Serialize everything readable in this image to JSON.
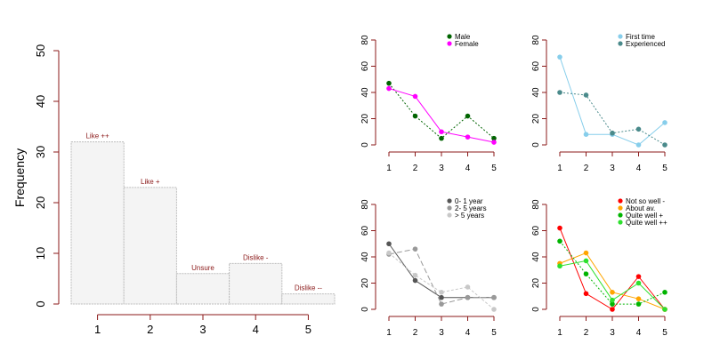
{
  "chart_data": [
    {
      "type": "bar",
      "ylabel": "Frequency",
      "categories": [
        "1",
        "2",
        "3",
        "4",
        "5"
      ],
      "values": [
        32,
        23,
        6,
        8,
        2
      ],
      "bar_labels": [
        "Like ++",
        "Like +",
        "Unsure",
        "Dislike -",
        "Dislike --"
      ],
      "ylim": [
        0,
        50
      ],
      "yticks": [
        0,
        10,
        20,
        30,
        40,
        50
      ],
      "grid": false,
      "colors": {
        "bar_fill": "#f4f4f4",
        "bar_stroke": "#bdbdbd",
        "label": "#8b1a1a",
        "axis": "#8b1a1a"
      }
    },
    {
      "type": "line",
      "x": [
        1,
        2,
        3,
        4,
        5
      ],
      "ylim": [
        0,
        80
      ],
      "yticks": [
        0,
        20,
        40,
        60,
        80
      ],
      "legend_position": "top-right",
      "series": [
        {
          "name": "Male",
          "values": [
            47,
            22,
            5,
            22,
            5
          ],
          "color": "#006400",
          "dash": "2,2"
        },
        {
          "name": "Female",
          "values": [
            43,
            37,
            10,
            6,
            2
          ],
          "color": "#ff00ff",
          "dash": ""
        }
      ]
    },
    {
      "type": "line",
      "x": [
        1,
        2,
        3,
        4,
        5
      ],
      "ylim": [
        0,
        80
      ],
      "yticks": [
        0,
        20,
        40,
        60,
        80
      ],
      "legend_position": "top-right",
      "series": [
        {
          "name": "First time",
          "values": [
            67,
            8,
            8,
            0,
            17
          ],
          "color": "#87ceeb",
          "dash": ""
        },
        {
          "name": "Experienced",
          "values": [
            40,
            38,
            9,
            12,
            0
          ],
          "color": "#4a8a8b",
          "dash": "2,2"
        }
      ]
    },
    {
      "type": "line",
      "x": [
        1,
        2,
        3,
        4,
        5
      ],
      "ylim": [
        0,
        80
      ],
      "yticks": [
        0,
        20,
        40,
        60,
        80
      ],
      "legend_position": "top-right",
      "series": [
        {
          "name": "0- 1 year",
          "values": [
            50,
            22,
            9,
            9,
            9
          ],
          "color": "#555555",
          "dash": ""
        },
        {
          "name": "2- 5 years",
          "values": [
            42,
            46,
            4,
            9,
            9
          ],
          "color": "#999999",
          "dash": "6,3"
        },
        {
          "name": "> 5 years",
          "values": [
            43,
            26,
            13,
            17,
            0
          ],
          "color": "#c8c8c8",
          "dash": "3,2"
        }
      ]
    },
    {
      "type": "line",
      "x": [
        1,
        2,
        3,
        4,
        5
      ],
      "ylim": [
        0,
        80
      ],
      "yticks": [
        0,
        20,
        40,
        60,
        80
      ],
      "legend_position": "top-right",
      "series": [
        {
          "name": "Not so well -",
          "values": [
            62,
            12,
            0,
            25,
            0
          ],
          "color": "#ff0000",
          "dash": ""
        },
        {
          "name": "About av.",
          "values": [
            35,
            43,
            13,
            8,
            0
          ],
          "color": "#ffa500",
          "dash": ""
        },
        {
          "name": "Quite well +",
          "values": [
            52,
            27,
            4,
            4,
            13
          ],
          "color": "#00b400",
          "dash": "2,2"
        },
        {
          "name": "Quite well ++",
          "values": [
            33,
            37,
            7,
            20,
            0
          ],
          "color": "#2ee02e",
          "dash": ""
        }
      ]
    }
  ]
}
